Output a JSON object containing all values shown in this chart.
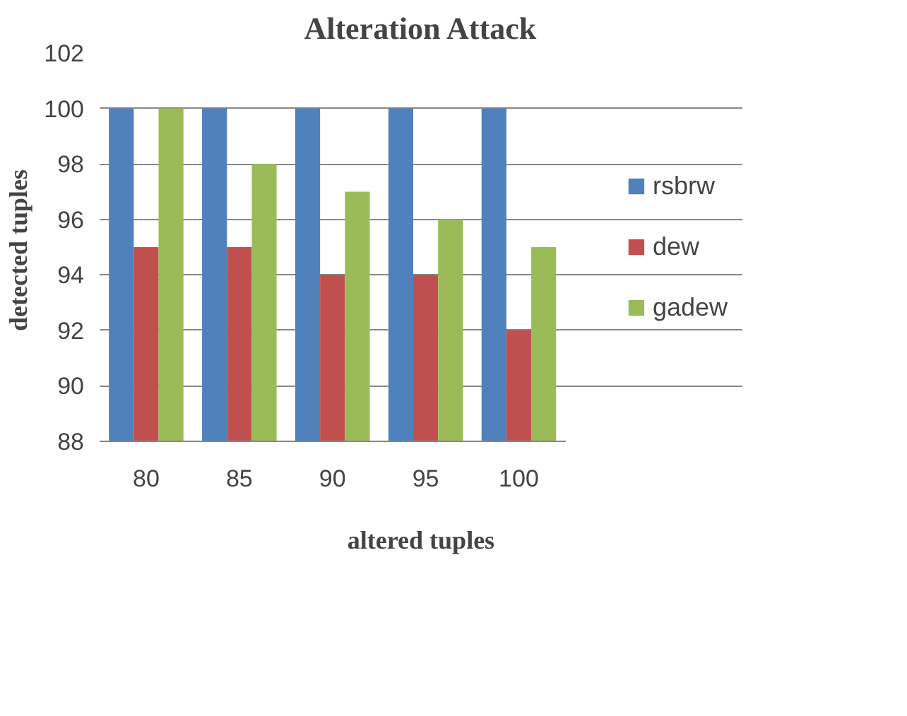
{
  "chart_data": {
    "type": "bar",
    "title": "Alteration Attack",
    "xlabel": "altered tuples",
    "ylabel": "detected  tuples",
    "categories": [
      "80",
      "85",
      "90",
      "95",
      "100"
    ],
    "series": [
      {
        "name": "rsbrw",
        "color": "#4f81bd",
        "values": [
          100,
          100,
          100,
          100,
          100
        ]
      },
      {
        "name": "dew",
        "color": "#c0504d",
        "values": [
          95,
          95,
          94,
          94,
          92
        ]
      },
      {
        "name": "gadew",
        "color": "#9bbb59",
        "values": [
          100,
          98,
          97,
          96,
          95
        ]
      }
    ],
    "ylim": [
      88,
      102
    ],
    "yticks": [
      88,
      90,
      92,
      94,
      96,
      98,
      100,
      102
    ],
    "grid": "y",
    "legend": "right"
  }
}
